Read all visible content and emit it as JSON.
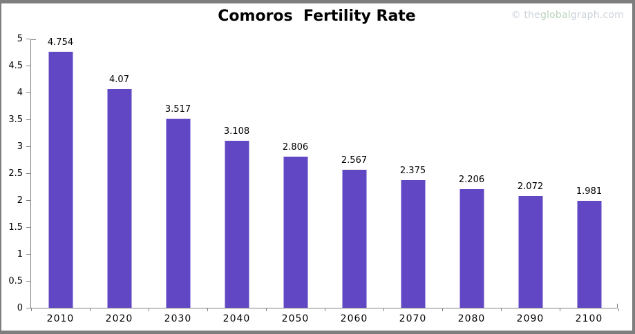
{
  "header": {
    "title": "Comoros  Fertility Rate",
    "watermark": {
      "prefix": "© the",
      "highlight": "global",
      "suffix": "graph.com"
    }
  },
  "chart_data": {
    "type": "bar",
    "title": "Comoros  Fertility Rate",
    "categories": [
      "2010",
      "2020",
      "2030",
      "2040",
      "2050",
      "2060",
      "2070",
      "2080",
      "2090",
      "2100"
    ],
    "values": [
      4.754,
      4.07,
      3.517,
      3.108,
      2.806,
      2.567,
      2.375,
      2.206,
      2.072,
      1.981
    ],
    "value_labels": [
      "4.754",
      "4.07",
      "3.517",
      "3.108",
      "2.806",
      "2.567",
      "2.375",
      "2.206",
      "2.072",
      "1.981"
    ],
    "xlabel": "",
    "ylabel": "",
    "ylim": [
      0,
      5
    ],
    "y_ticks": [
      5,
      4.5,
      4,
      3.5,
      3,
      2.5,
      2,
      1.5,
      1,
      0.5,
      0
    ],
    "grid": false,
    "legend": null,
    "value_labels_shown": true,
    "bar_color": "#6247c4"
  },
  "colors": {
    "bar": "#6247c4",
    "axis": "#808080",
    "frame_border": "#7e7e7e",
    "label_text": "#000000",
    "watermark_gray": "#ccd2da",
    "watermark_green": "#b9d3ba"
  }
}
